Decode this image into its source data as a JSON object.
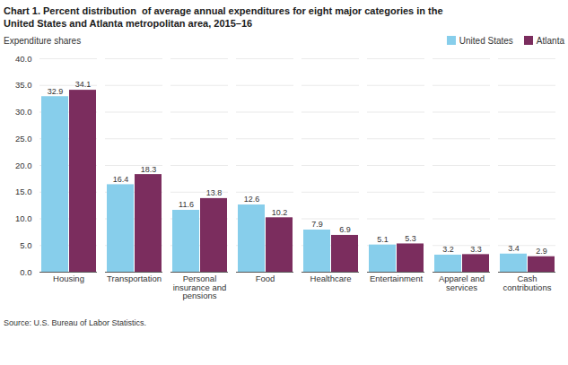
{
  "chart_data": {
    "type": "bar",
    "title": "Chart 1. Percent distribution  of average annual expenditures for eight major categories in the\nUnited States and Atlanta metropolitan area, 2015–16",
    "ylabel": "Expenditure shares",
    "source": "Source: U.S. Bureau of Labor Statistics.",
    "categories": [
      "Housing",
      "Transportation",
      "Personal\ninsurance and\npensions",
      "Food",
      "Healthcare",
      "Entertainment",
      "Apparel and\nservices",
      "Cash\ncontributions"
    ],
    "series": [
      {
        "name": "United States",
        "color": "#87CEEB",
        "values": [
          32.9,
          16.4,
          11.6,
          12.6,
          7.9,
          5.1,
          3.2,
          3.4
        ]
      },
      {
        "name": "Atlanta",
        "color": "#7B2D5E",
        "values": [
          34.1,
          18.3,
          13.8,
          10.2,
          6.9,
          5.3,
          3.3,
          2.9
        ]
      }
    ],
    "ylim": [
      0,
      40.0
    ],
    "yticks": [
      {
        "value": 0.0,
        "label": "0.0"
      },
      {
        "value": 5.0,
        "label": "5.0"
      },
      {
        "value": 10.0,
        "label": "10.0"
      },
      {
        "value": 15.0,
        "label": "15.0"
      },
      {
        "value": 20.0,
        "label": "20.0"
      },
      {
        "value": 25.0,
        "label": "25.0"
      },
      {
        "value": 30.0,
        "label": "30.0"
      },
      {
        "value": 35.0,
        "label": "35.0"
      },
      {
        "value": 40.0,
        "label": "40.0"
      }
    ],
    "grid": true,
    "legend": "upper right",
    "data_labels": true
  }
}
